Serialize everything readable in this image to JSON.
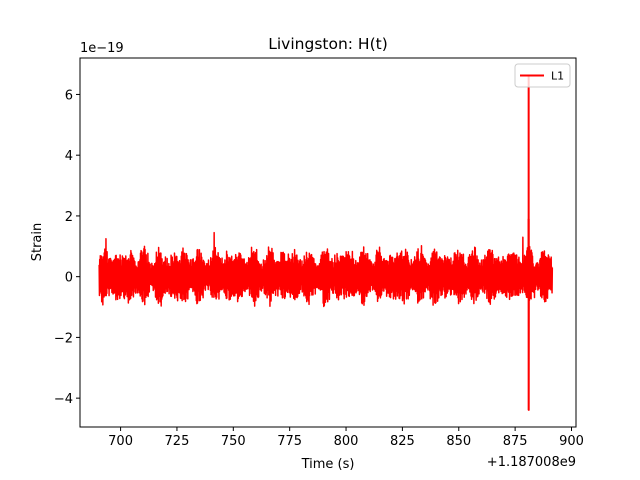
{
  "chart_data": {
    "type": "line",
    "title": "Livingston: H(t)",
    "xlabel": "Time (s)",
    "ylabel": "Strain",
    "x_offset_label": "+1.187008e9",
    "y_scale_label": "1e−19",
    "xlim": [
      682,
      902
    ],
    "ylim": [
      -4.95,
      7.2
    ],
    "x_ticks": [
      700,
      725,
      750,
      775,
      800,
      825,
      850,
      875,
      900
    ],
    "x_tick_labels": [
      "700",
      "725",
      "750",
      "775",
      "800",
      "825",
      "850",
      "875",
      "900"
    ],
    "y_ticks": [
      -4,
      -2,
      0,
      2,
      4,
      6
    ],
    "y_tick_labels": [
      "−4",
      "−2",
      "0",
      "2",
      "4",
      "6"
    ],
    "grid": false,
    "legend": {
      "position": "top-right"
    },
    "series": [
      {
        "name": "L1",
        "color": "#ff0000",
        "x_range": [
          690.5,
          891.5
        ],
        "noise_band": [
          -1.1,
          1.15
        ],
        "peaks": [
          {
            "x": 693.5,
            "y": 1.25
          },
          {
            "x": 694.5,
            "y": -1.2
          },
          {
            "x": 741.5,
            "y": 1.45
          },
          {
            "x": 768.5,
            "y": 1.25
          },
          {
            "x": 878.5,
            "y": 1.3
          },
          {
            "x": 881.0,
            "y": 6.6
          },
          {
            "x": 881.0,
            "y": -4.4
          },
          {
            "x": 881.0,
            "y": 1.9
          }
        ]
      }
    ]
  }
}
